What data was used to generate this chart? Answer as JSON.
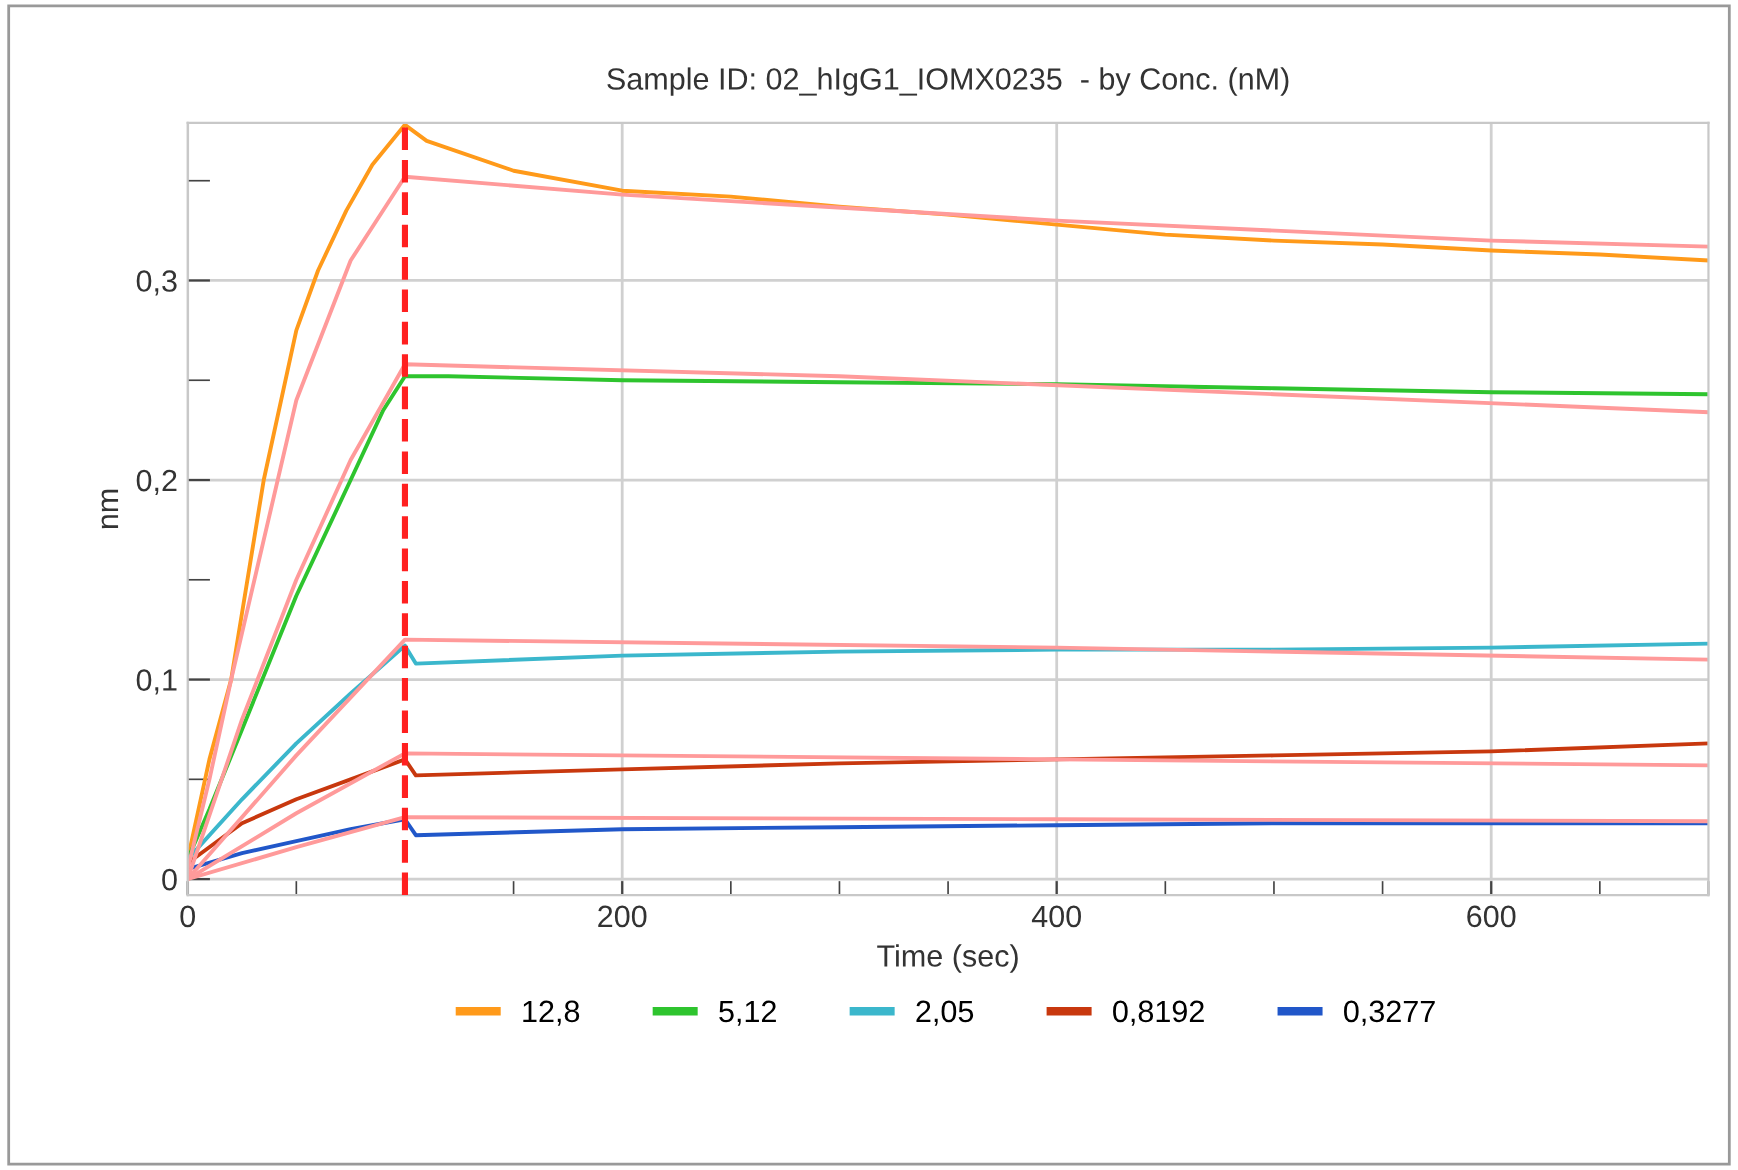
{
  "chart_data": {
    "type": "line",
    "title": "Sample ID: 02_hIgG1_IOMX0235  - by Conc. (nM)",
    "xlabel": "Time (sec)",
    "ylabel": "nm",
    "xlim": [
      0,
      700
    ],
    "ylim": [
      -0.008,
      0.379
    ],
    "xticks": [
      0,
      {
        "value": 50,
        "label": null
      },
      {
        "value": 100,
        "label": null
      },
      {
        "value": 150,
        "label": null
      },
      200,
      {
        "value": 250,
        "label": null
      },
      {
        "value": 300,
        "label": null
      },
      {
        "value": 350,
        "label": null
      },
      400,
      {
        "value": 450,
        "label": null
      },
      {
        "value": 500,
        "label": null
      },
      {
        "value": 550,
        "label": null
      },
      600,
      {
        "value": 650,
        "label": null
      },
      {
        "value": 700,
        "label": null
      }
    ],
    "yticks": [
      0,
      {
        "value": 0.05,
        "label": null
      },
      {
        "value": 0.1,
        "label": "0,1"
      },
      {
        "value": 0.15,
        "label": null
      },
      {
        "value": 0.2,
        "label": "0,2"
      },
      {
        "value": 0.25,
        "label": null
      },
      {
        "value": 0.3,
        "label": "0,3"
      },
      {
        "value": 0.35,
        "label": null
      }
    ],
    "grid": true,
    "legend": "bottom",
    "ref_lines": [
      {
        "axis": "x",
        "value": 100,
        "color": "#ff2020",
        "line_style": "dashed"
      }
    ],
    "series": [
      {
        "name": "12,8",
        "color": "#ff9a1a",
        "x": [
          0,
          10,
          20,
          35,
          50,
          60,
          73,
          85,
          100,
          110,
          150,
          200,
          250,
          300,
          350,
          400,
          450,
          500,
          550,
          600,
          650,
          700
        ],
        "values": [
          0.01,
          0.06,
          0.1,
          0.2,
          0.275,
          0.305,
          0.335,
          0.358,
          0.378,
          0.37,
          0.355,
          0.345,
          0.342,
          0.337,
          0.333,
          0.328,
          0.323,
          0.32,
          0.318,
          0.315,
          0.313,
          0.31
        ]
      },
      {
        "name": "5,12",
        "color": "#2ec42e",
        "x": [
          0,
          10,
          25,
          50,
          75,
          90,
          100,
          120,
          200,
          300,
          400,
          500,
          600,
          700
        ],
        "values": [
          0.01,
          0.035,
          0.075,
          0.142,
          0.2,
          0.235,
          0.252,
          0.252,
          0.25,
          0.249,
          0.248,
          0.246,
          0.244,
          0.243
        ]
      },
      {
        "name": "2,05",
        "color": "#3bb7cc",
        "x": [
          0,
          25,
          50,
          75,
          100,
          105,
          200,
          300,
          400,
          500,
          600,
          700
        ],
        "values": [
          0.01,
          0.04,
          0.068,
          0.093,
          0.117,
          0.108,
          0.112,
          0.114,
          0.115,
          0.115,
          0.116,
          0.118
        ]
      },
      {
        "name": "0,8192",
        "color": "#c8380e",
        "x": [
          0,
          25,
          50,
          75,
          100,
          105,
          200,
          300,
          400,
          500,
          600,
          700
        ],
        "values": [
          0.008,
          0.028,
          0.04,
          0.05,
          0.06,
          0.052,
          0.055,
          0.058,
          0.06,
          0.062,
          0.064,
          0.068
        ]
      },
      {
        "name": "0,3277",
        "color": "#2157c9",
        "x": [
          0,
          25,
          50,
          75,
          100,
          105,
          200,
          300,
          400,
          500,
          600,
          700
        ],
        "values": [
          0.005,
          0.013,
          0.019,
          0.025,
          0.03,
          0.022,
          0.025,
          0.026,
          0.027,
          0.028,
          0.028,
          0.028
        ]
      },
      {
        "color": "#ff9a9a",
        "x": [
          0,
          10,
          20,
          35,
          50,
          75,
          100,
          200,
          400,
          600,
          700
        ],
        "values": [
          0.005,
          0.05,
          0.1,
          0.17,
          0.24,
          0.31,
          0.352,
          0.343,
          0.33,
          0.32,
          0.317
        ]
      },
      {
        "color": "#ff9a9a",
        "x": [
          0,
          25,
          50,
          75,
          100,
          300,
          500,
          700
        ],
        "values": [
          0.0,
          0.08,
          0.15,
          0.21,
          0.258,
          0.252,
          0.243,
          0.234
        ]
      },
      {
        "color": "#ff9a9a",
        "x": [
          0,
          50,
          100,
          400,
          700
        ],
        "values": [
          0.0,
          0.062,
          0.12,
          0.116,
          0.11
        ]
      },
      {
        "color": "#ff9a9a",
        "x": [
          0,
          50,
          100,
          400,
          700
        ],
        "values": [
          0.0,
          0.033,
          0.063,
          0.06,
          0.057
        ]
      },
      {
        "color": "#ff9a9a",
        "x": [
          0,
          50,
          100,
          400,
          700
        ],
        "values": [
          0.0,
          0.016,
          0.031,
          0.03,
          0.029
        ]
      }
    ]
  }
}
